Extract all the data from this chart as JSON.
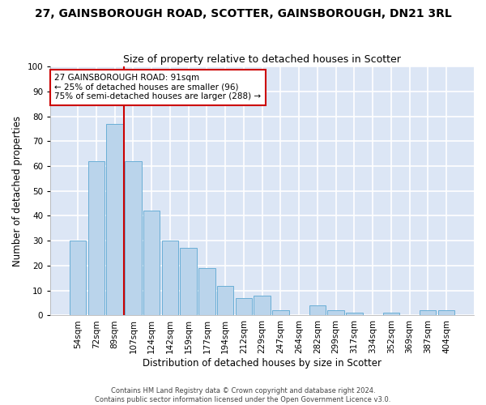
{
  "title": "27, GAINSBOROUGH ROAD, SCOTTER, GAINSBOROUGH, DN21 3RL",
  "subtitle": "Size of property relative to detached houses in Scotter",
  "xlabel": "Distribution of detached houses by size in Scotter",
  "ylabel": "Number of detached properties",
  "categories": [
    "54sqm",
    "72sqm",
    "89sqm",
    "107sqm",
    "124sqm",
    "142sqm",
    "159sqm",
    "177sqm",
    "194sqm",
    "212sqm",
    "229sqm",
    "247sqm",
    "264sqm",
    "282sqm",
    "299sqm",
    "317sqm",
    "334sqm",
    "352sqm",
    "369sqm",
    "387sqm",
    "404sqm"
  ],
  "values": [
    30,
    62,
    77,
    62,
    42,
    30,
    27,
    19,
    12,
    7,
    8,
    2,
    0,
    4,
    2,
    1,
    0,
    1,
    0,
    2,
    2
  ],
  "bar_color": "#bad4eb",
  "bar_edge_color": "#6aaed6",
  "background_color": "#dce6f5",
  "grid_color": "#ffffff",
  "property_line_color": "#cc0000",
  "annotation_text": "27 GAINSBOROUGH ROAD: 91sqm\n← 25% of detached houses are smaller (96)\n75% of semi-detached houses are larger (288) →",
  "annotation_box_color": "#ffffff",
  "annotation_box_edge": "#cc0000",
  "footer_line1": "Contains HM Land Registry data © Crown copyright and database right 2024.",
  "footer_line2": "Contains public sector information licensed under the Open Government Licence v3.0.",
  "ylim": [
    0,
    100
  ],
  "title_fontsize": 10,
  "subtitle_fontsize": 9,
  "xlabel_fontsize": 8.5,
  "ylabel_fontsize": 8.5,
  "tick_fontsize": 7.5,
  "footer_fontsize": 6,
  "annotation_fontsize": 7.5
}
